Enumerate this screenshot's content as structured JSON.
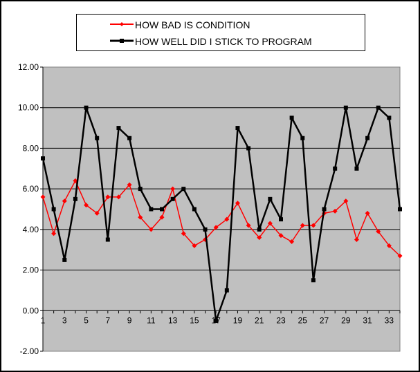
{
  "chart_data": {
    "type": "line",
    "title": "",
    "xlabel": "",
    "ylabel": "",
    "ylim": [
      -2,
      12
    ],
    "y_ticks": [
      "12.00",
      "10.00",
      "8.00",
      "6.00",
      "4.00",
      "2.00",
      "0.00",
      "-2.00"
    ],
    "y_tick_values": [
      12,
      10,
      8,
      6,
      4,
      2,
      0,
      -2
    ],
    "x_tick_labels": [
      "1",
      "3",
      "5",
      "7",
      "9",
      "11",
      "13",
      "15",
      "17",
      "19",
      "21",
      "23",
      "25",
      "27",
      "29",
      "31",
      "33"
    ],
    "x": [
      1,
      2,
      3,
      4,
      5,
      6,
      7,
      8,
      9,
      10,
      11,
      12,
      13,
      14,
      15,
      16,
      17,
      18,
      19,
      20,
      21,
      22,
      23,
      24,
      25,
      26,
      27,
      28,
      29,
      30,
      31,
      32,
      33,
      34
    ],
    "grid": true,
    "plot_background": "#c0c0c0",
    "legend_position": "top",
    "series": [
      {
        "name": "HOW BAD IS CONDITION",
        "color": "#ff0000",
        "marker": "diamond",
        "values": [
          5.6,
          3.8,
          5.4,
          6.4,
          5.2,
          4.8,
          5.6,
          5.6,
          6.2,
          4.6,
          4.0,
          4.6,
          6.0,
          3.8,
          3.2,
          3.5,
          4.1,
          4.5,
          5.3,
          4.2,
          3.6,
          4.3,
          3.7,
          3.4,
          4.2,
          4.2,
          4.8,
          4.9,
          5.4,
          3.5,
          4.8,
          3.9,
          3.2,
          2.7
        ]
      },
      {
        "name": "HOW WELL DID I STICK TO PROGRAM",
        "color": "#000000",
        "marker": "square",
        "values": [
          7.5,
          5.0,
          2.5,
          5.5,
          10.0,
          8.5,
          3.5,
          9.0,
          8.5,
          6.0,
          5.0,
          5.0,
          5.5,
          6.0,
          5.0,
          4.0,
          -0.5,
          1.0,
          9.0,
          8.0,
          4.0,
          5.5,
          4.5,
          9.5,
          8.5,
          1.5,
          5.0,
          7.0,
          10.0,
          7.0,
          8.5,
          10.0,
          9.5,
          5.0
        ]
      }
    ]
  }
}
